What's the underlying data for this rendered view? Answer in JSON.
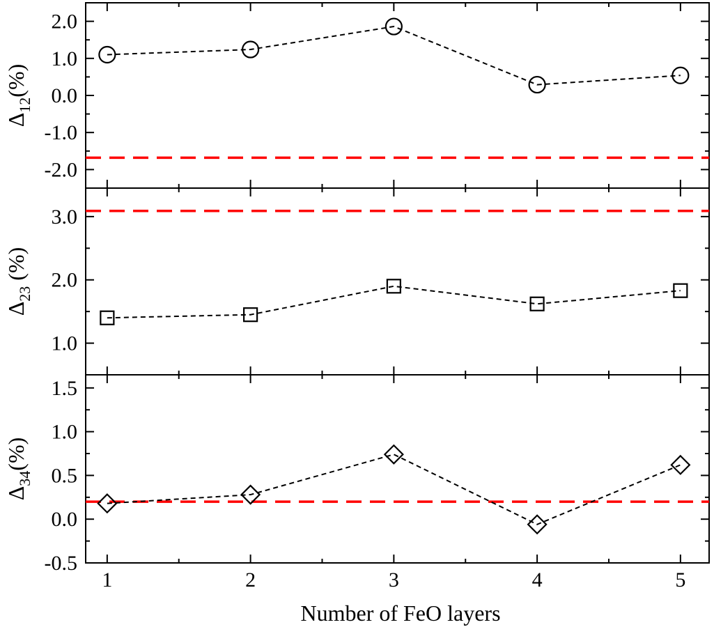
{
  "chart_data": {
    "type": "line",
    "xlabel": "Number of FeO layers",
    "x": [
      1,
      2,
      3,
      4,
      5
    ],
    "x_tick_labels": [
      "1",
      "2",
      "3",
      "4",
      "5"
    ],
    "xlim": [
      0.85,
      5.2
    ],
    "grid": false,
    "panels": [
      {
        "ylabel": {
          "prefix": "Δ",
          "subscript": "12",
          "suffix": "(%)"
        },
        "ylim": [
          -2.5,
          2.5
        ],
        "y_ticks": [
          -2.0,
          -1.0,
          0.0,
          1.0,
          2.0
        ],
        "y_tick_labels": [
          "-2.0",
          "-1.0",
          "0.0",
          "1.0",
          "2.0"
        ],
        "marker": "circle",
        "values": [
          1.1,
          1.24,
          1.86,
          0.29,
          0.54
        ],
        "reference_line": -1.68,
        "reference_color": "#ff0000"
      },
      {
        "ylabel": {
          "prefix": "Δ",
          "subscript": "23",
          "suffix": " (%)"
        },
        "ylim": [
          0.5,
          3.45
        ],
        "y_ticks": [
          1.0,
          2.0,
          3.0
        ],
        "y_tick_labels": [
          "1.0",
          "2.0",
          "3.0"
        ],
        "marker": "square",
        "values": [
          1.4,
          1.45,
          1.9,
          1.62,
          1.83
        ],
        "reference_line": 3.09,
        "reference_color": "#ff0000"
      },
      {
        "ylabel": {
          "prefix": "Δ",
          "subscript": "34",
          "suffix": "(%)"
        },
        "ylim": [
          -0.5,
          1.65
        ],
        "y_ticks": [
          -0.5,
          0.0,
          0.5,
          1.0,
          1.5
        ],
        "y_tick_labels": [
          "-0.5",
          "0.0",
          "0.5",
          "1.0",
          "1.5"
        ],
        "marker": "diamond",
        "values": [
          0.18,
          0.28,
          0.74,
          -0.06,
          0.62
        ],
        "reference_line": 0.2,
        "reference_color": "#ff0000"
      }
    ]
  }
}
